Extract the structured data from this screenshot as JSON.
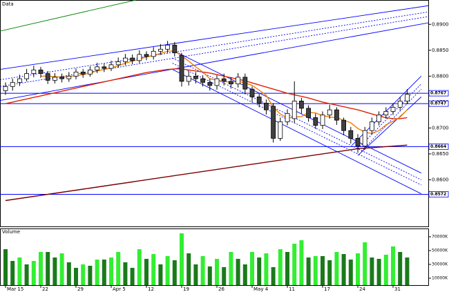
{
  "chart_data": [
    {
      "type": "candlestick",
      "title": "Data",
      "categories": [
        "Mar 15",
        null,
        null,
        null,
        null,
        "22",
        null,
        null,
        null,
        null,
        "29",
        null,
        null,
        null,
        null,
        "Apr 5",
        null,
        null,
        null,
        null,
        "12",
        null,
        null,
        null,
        null,
        "19",
        null,
        null,
        null,
        null,
        "26",
        null,
        null,
        null,
        null,
        "May 4",
        null,
        null,
        null,
        null,
        "11",
        null,
        null,
        null,
        null,
        "17",
        null,
        null,
        null,
        null,
        "24",
        null,
        null,
        null,
        null,
        "31",
        null,
        null
      ],
      "open": [
        0.8772,
        0.878,
        0.8788,
        0.8795,
        0.8805,
        0.8812,
        0.8805,
        0.8792,
        0.8798,
        0.8795,
        0.88,
        0.8808,
        0.8804,
        0.8812,
        0.8818,
        0.8815,
        0.8822,
        0.8828,
        0.8835,
        0.883,
        0.8842,
        0.8838,
        0.8848,
        0.8852,
        0.886,
        0.884,
        0.879,
        0.88,
        0.8795,
        0.8788,
        0.8782,
        0.8795,
        0.879,
        0.8785,
        0.8798,
        0.8775,
        0.876,
        0.8748,
        0.8742,
        0.868,
        0.8712,
        0.8718,
        0.8752,
        0.8738,
        0.872,
        0.8705,
        0.8725,
        0.8735,
        0.8715,
        0.8695,
        0.868,
        0.8665,
        0.8695,
        0.8712,
        0.8725,
        0.8732,
        0.874,
        0.8752
      ],
      "high": [
        0.8788,
        0.8795,
        0.8803,
        0.8814,
        0.882,
        0.8818,
        0.881,
        0.8806,
        0.8805,
        0.8808,
        0.8815,
        0.8814,
        0.8819,
        0.8826,
        0.8824,
        0.883,
        0.8836,
        0.8843,
        0.8842,
        0.885,
        0.8848,
        0.8856,
        0.8862,
        0.8868,
        0.8866,
        0.8845,
        0.881,
        0.8808,
        0.8802,
        0.8795,
        0.8802,
        0.8805,
        0.8798,
        0.8806,
        0.8805,
        0.878,
        0.8766,
        0.8755,
        0.8748,
        0.872,
        0.8736,
        0.879,
        0.8758,
        0.8744,
        0.8728,
        0.8732,
        0.8745,
        0.874,
        0.872,
        0.8702,
        0.8688,
        0.8702,
        0.872,
        0.8732,
        0.874,
        0.8748,
        0.876,
        0.8775
      ],
      "low": [
        0.8764,
        0.8772,
        0.8781,
        0.879,
        0.8798,
        0.8797,
        0.8785,
        0.8786,
        0.8788,
        0.8789,
        0.8794,
        0.8797,
        0.8799,
        0.8806,
        0.8808,
        0.881,
        0.8816,
        0.8821,
        0.8823,
        0.8825,
        0.8831,
        0.8832,
        0.8841,
        0.8845,
        0.8838,
        0.878,
        0.8782,
        0.8786,
        0.878,
        0.8772,
        0.8774,
        0.8782,
        0.8776,
        0.8778,
        0.8765,
        0.875,
        0.874,
        0.8726,
        0.8672,
        0.8675,
        0.8705,
        0.871,
        0.8728,
        0.8712,
        0.8698,
        0.8698,
        0.8718,
        0.8706,
        0.8686,
        0.867,
        0.8652,
        0.8658,
        0.8688,
        0.8705,
        0.8718,
        0.8725,
        0.8734,
        0.8746
      ],
      "close": [
        0.878,
        0.8788,
        0.8795,
        0.8805,
        0.8812,
        0.8805,
        0.8792,
        0.8798,
        0.8795,
        0.88,
        0.8808,
        0.8804,
        0.8812,
        0.8818,
        0.8815,
        0.8822,
        0.8828,
        0.8835,
        0.883,
        0.8842,
        0.8838,
        0.8848,
        0.8852,
        0.886,
        0.8845,
        0.879,
        0.88,
        0.8795,
        0.8788,
        0.8782,
        0.8795,
        0.879,
        0.8785,
        0.8798,
        0.8775,
        0.876,
        0.8748,
        0.8735,
        0.868,
        0.8712,
        0.8728,
        0.8752,
        0.8738,
        0.872,
        0.8705,
        0.8725,
        0.8735,
        0.8715,
        0.8695,
        0.868,
        0.8665,
        0.8695,
        0.8712,
        0.8725,
        0.8732,
        0.874,
        0.8752,
        0.8765
      ],
      "up_color": "#ffffff",
      "down_color": "#404040",
      "series": [
        {
          "color": "#7a0000",
          "values": [
            0.856,
            0.8562,
            0.8564,
            0.8566,
            0.8568,
            0.857,
            0.8572,
            0.8574,
            0.8576,
            0.8578,
            0.858,
            0.8582,
            0.8584,
            0.8586,
            0.8588,
            0.859,
            0.8592,
            0.8594,
            0.8596,
            0.8598,
            0.86,
            0.8602,
            0.8604,
            0.8606,
            0.8608,
            0.861,
            0.8612,
            0.8614,
            0.8616,
            0.8618,
            0.862,
            0.8622,
            0.8624,
            0.8626,
            0.8628,
            0.863,
            0.8632,
            0.8634,
            0.8636,
            0.8638,
            0.864,
            0.8642,
            0.8644,
            0.8646,
            0.8648,
            0.865,
            0.8652,
            0.8654,
            0.8656,
            0.8658,
            0.866,
            0.8661,
            0.8662,
            0.8663,
            0.8664,
            0.8665,
            0.8666,
            0.8667
          ]
        },
        {
          "color": "#e02000",
          "values": [
            0.8747,
            0.875,
            0.8753,
            0.8756,
            0.8759,
            0.8762,
            0.8765,
            0.8768,
            0.8771,
            0.8774,
            0.8777,
            0.878,
            0.8783,
            0.8786,
            0.8789,
            0.8792,
            0.8795,
            0.8798,
            0.8801,
            0.8804,
            0.8807,
            0.8809,
            0.8811,
            0.8813,
            0.8814,
            0.8814,
            0.8812,
            0.881,
            0.8808,
            0.8806,
            0.8803,
            0.88,
            0.8797,
            0.8794,
            0.8791,
            0.8787,
            0.8783,
            0.8779,
            0.8775,
            0.8771,
            0.8767,
            0.8764,
            0.8761,
            0.8758,
            0.8754,
            0.875,
            0.8747,
            0.8744,
            0.8741,
            0.8738,
            0.8735,
            0.8731,
            0.8727,
            0.8723,
            0.872,
            0.8718,
            0.8718,
            0.872
          ]
        },
        {
          "color": "#f08000",
          "values": [
            null,
            null,
            null,
            null,
            null,
            0.88,
            0.88,
            0.8799,
            0.8798,
            0.8799,
            0.8801,
            0.8803,
            0.8806,
            0.881,
            0.8813,
            0.8816,
            0.882,
            0.8825,
            0.8829,
            0.8833,
            0.8837,
            0.884,
            0.8844,
            0.8848,
            0.8849,
            0.8839,
            0.8829,
            0.8818,
            0.8808,
            0.8795,
            0.8792,
            0.879,
            0.8788,
            0.879,
            0.8787,
            0.8782,
            0.8773,
            0.8763,
            0.874,
            0.8727,
            0.8719,
            0.8721,
            0.8722,
            0.873,
            0.8729,
            0.8724,
            0.8721,
            0.872,
            0.8715,
            0.871,
            0.8699,
            0.8692,
            0.8689,
            0.8695,
            0.8706,
            0.8713,
            0.8721,
            0.8735
          ]
        }
      ],
      "trendlines": [
        {
          "color": "#0000ff",
          "dash": false,
          "x": [
            -0.78,
            60
          ],
          "y": [
            0.8813,
            0.8936
          ]
        },
        {
          "color": "#0000ff",
          "dash": true,
          "x": [
            -0.78,
            60
          ],
          "y": [
            0.8793,
            0.8924
          ]
        },
        {
          "color": "#0000ff",
          "dash": true,
          "x": [
            -0.78,
            60
          ],
          "y": [
            0.878,
            0.8915
          ]
        },
        {
          "color": "#0000ff",
          "dash": false,
          "x": [
            -0.78,
            60
          ],
          "y": [
            0.8753,
            0.8903
          ]
        },
        {
          "color": "#0000ff",
          "dash": false,
          "x": [
            23.7,
            59
          ],
          "y": [
            0.885,
            0.8613
          ]
        },
        {
          "color": "#0000ff",
          "dash": true,
          "x": [
            23.7,
            59
          ],
          "y": [
            0.8835,
            0.86
          ]
        },
        {
          "color": "#0000ff",
          "dash": true,
          "x": [
            23.7,
            59
          ],
          "y": [
            0.8825,
            0.859
          ]
        },
        {
          "color": "#0000ff",
          "dash": false,
          "x": [
            23.7,
            59
          ],
          "y": [
            0.8813,
            0.8573
          ]
        },
        {
          "color": "#0000ff",
          "dash": false,
          "x": [
            49.2,
            59
          ],
          "y": [
            0.8667,
            0.88
          ]
        },
        {
          "color": "#0000ff",
          "dash": true,
          "x": [
            50,
            59
          ],
          "y": [
            0.866,
            0.8785
          ]
        },
        {
          "color": "#0000ff",
          "dash": true,
          "x": [
            50.5,
            59
          ],
          "y": [
            0.8655,
            0.8775
          ]
        },
        {
          "color": "#0000ff",
          "dash": false,
          "x": [
            50,
            59
          ],
          "y": [
            0.8647,
            0.876
          ]
        },
        {
          "color": "#008000",
          "dash": false,
          "x": [
            -0.78,
            18.5
          ],
          "y": [
            0.8887,
            0.8947
          ]
        }
      ],
      "hlines": [
        {
          "value": 0.8767,
          "label": "0.8767"
        },
        {
          "value": 0.8747,
          "label": "0.8747"
        },
        {
          "value": 0.8664,
          "label": "0.8664"
        },
        {
          "value": 0.8572,
          "label": "0.8572"
        }
      ],
      "hline_color": "#0000ff",
      "ylim": [
        0.851,
        0.8947
      ],
      "yticks": [
        {
          "value": 0.86,
          "label": "0.8600"
        },
        {
          "value": 0.865,
          "label": "0.8650"
        },
        {
          "value": 0.87,
          "label": "0.8700"
        },
        {
          "value": 0.875,
          "label": "0.8750"
        },
        {
          "value": 0.88,
          "label": "0.8800"
        },
        {
          "value": 0.885,
          "label": "0.8850"
        },
        {
          "value": 0.89,
          "label": "0.8900"
        }
      ]
    },
    {
      "type": "bar",
      "title": "Volume",
      "values": [
        52000,
        35000,
        40000,
        30000,
        35000,
        48000,
        48000,
        40000,
        46000,
        33000,
        25000,
        30000,
        28000,
        37000,
        37000,
        40000,
        48000,
        33000,
        25000,
        52000,
        38000,
        45000,
        30000,
        42000,
        36000,
        75000,
        46000,
        30000,
        42000,
        27000,
        38000,
        26000,
        48000,
        38000,
        30000,
        48000,
        40000,
        46000,
        26000,
        52000,
        48000,
        60000,
        65000,
        40000,
        42000,
        42000,
        36000,
        48000,
        45000,
        37000,
        46000,
        62000,
        40000,
        38000,
        44000,
        56000,
        48000,
        40000
      ],
      "rising_color": "#33ee33",
      "falling_color": "#1a7a1a",
      "ylim": [
        0,
        80000
      ],
      "yticks": [
        {
          "value": 10000,
          "label": "10000K"
        },
        {
          "value": 30000,
          "label": "30000K"
        },
        {
          "value": 50000,
          "label": "50000K"
        },
        {
          "value": 70000,
          "label": "70000K"
        }
      ]
    }
  ]
}
